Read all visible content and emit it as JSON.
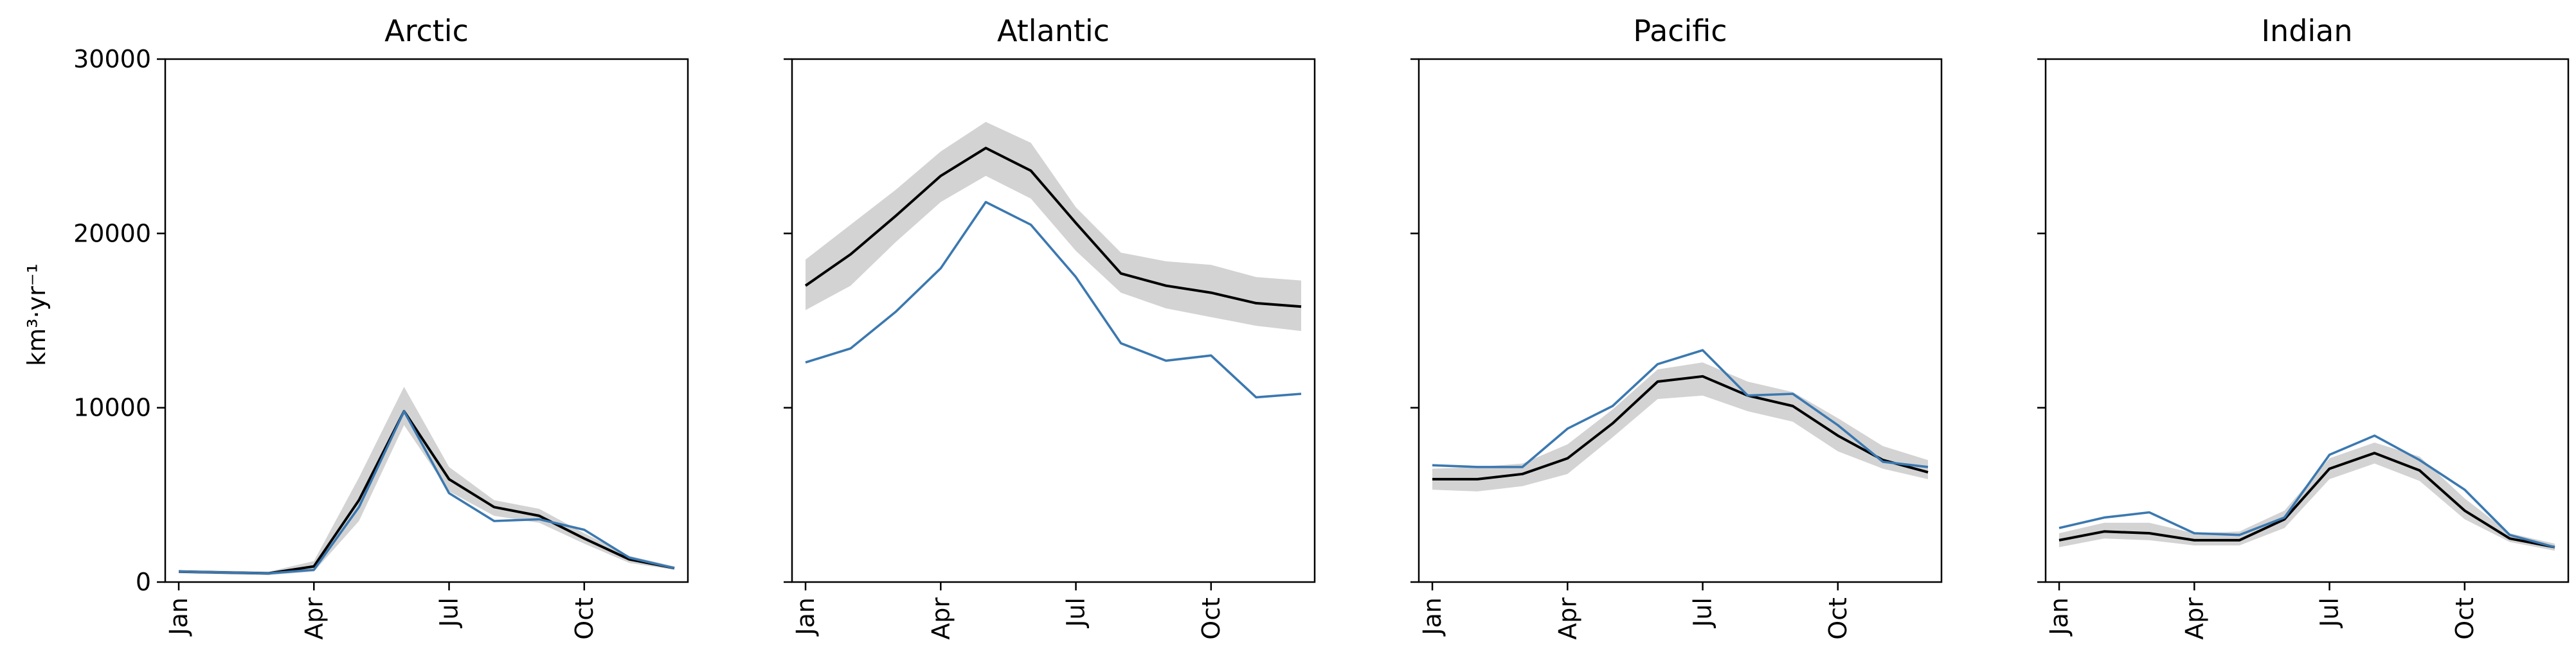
{
  "figure": {
    "ylabel": "km³·yr⁻¹",
    "colors": {
      "mean": "#000000",
      "band": "#d3d3d3",
      "obs": "#3b78b0"
    },
    "ytick_labels": [
      "0",
      "10000",
      "20000",
      "30000"
    ]
  },
  "chart_data": [
    {
      "type": "line",
      "title": "Arctic",
      "ylim": [
        0,
        30000
      ],
      "xlim": [
        0.7,
        12.3
      ],
      "x": [
        1,
        2,
        3,
        4,
        5,
        6,
        7,
        8,
        9,
        10,
        11,
        12
      ],
      "xticks": [
        1,
        4,
        7,
        10
      ],
      "xtick_labels": [
        "Jan",
        "Apr",
        "Jul",
        "Oct"
      ],
      "yticks": [
        0,
        10000,
        20000,
        30000
      ],
      "ytick_labels": [
        "0",
        "10000",
        "20000",
        "30000"
      ],
      "series": [
        {
          "role": "band",
          "lower": [
            500,
            450,
            400,
            600,
            3500,
            9000,
            5200,
            3800,
            3400,
            2200,
            1100,
            700
          ],
          "upper": [
            700,
            650,
            600,
            1200,
            6000,
            11200,
            6600,
            4700,
            4200,
            2800,
            1500,
            900
          ]
        },
        {
          "role": "mean",
          "values": [
            600,
            550,
            500,
            900,
            4700,
            9800,
            5900,
            4300,
            3800,
            2500,
            1300,
            800
          ]
        },
        {
          "role": "obs",
          "values": [
            600,
            550,
            500,
            700,
            4300,
            9800,
            5100,
            3500,
            3600,
            3000,
            1400,
            800
          ]
        }
      ]
    },
    {
      "type": "line",
      "title": "Atlantic",
      "ylim": [
        0,
        30000
      ],
      "xlim": [
        0.7,
        12.3
      ],
      "x": [
        1,
        2,
        3,
        4,
        5,
        6,
        7,
        8,
        9,
        10,
        11,
        12
      ],
      "xticks": [
        1,
        4,
        7,
        10
      ],
      "xtick_labels": [
        "Jan",
        "Apr",
        "Jul",
        "Oct"
      ],
      "yticks": [
        0,
        10000,
        20000,
        30000
      ],
      "ytick_labels": [],
      "series": [
        {
          "role": "band",
          "lower": [
            15600,
            17000,
            19500,
            21800,
            23300,
            22000,
            19000,
            16600,
            15700,
            15200,
            14700,
            14400
          ],
          "upper": [
            18500,
            20500,
            22500,
            24700,
            26400,
            25200,
            21500,
            18900,
            18400,
            18200,
            17500,
            17300
          ]
        },
        {
          "role": "mean",
          "values": [
            17000,
            18800,
            21000,
            23300,
            24900,
            23600,
            20600,
            17700,
            17000,
            16600,
            16000,
            15800
          ]
        },
        {
          "role": "obs",
          "values": [
            12600,
            13400,
            15500,
            18000,
            21800,
            20500,
            17500,
            13700,
            12700,
            13000,
            10600,
            10800
          ]
        }
      ]
    },
    {
      "type": "line",
      "title": "Pacific",
      "ylim": [
        0,
        30000
      ],
      "xlim": [
        0.7,
        12.3
      ],
      "x": [
        1,
        2,
        3,
        4,
        5,
        6,
        7,
        8,
        9,
        10,
        11,
        12
      ],
      "xticks": [
        1,
        4,
        7,
        10
      ],
      "xtick_labels": [
        "Jan",
        "Apr",
        "Jul",
        "Oct"
      ],
      "yticks": [
        0,
        10000,
        20000,
        30000
      ],
      "ytick_labels": [],
      "series": [
        {
          "role": "band",
          "lower": [
            5300,
            5200,
            5500,
            6200,
            8300,
            10500,
            10700,
            9800,
            9200,
            7500,
            6500,
            5900
          ],
          "upper": [
            6500,
            6600,
            6800,
            7900,
            9900,
            12200,
            12600,
            11500,
            10900,
            9400,
            7800,
            7000
          ]
        },
        {
          "role": "mean",
          "values": [
            5900,
            5900,
            6200,
            7100,
            9100,
            11500,
            11800,
            10700,
            10100,
            8400,
            7000,
            6300
          ]
        },
        {
          "role": "obs",
          "values": [
            6700,
            6600,
            6600,
            8800,
            10100,
            12500,
            13300,
            10700,
            10800,
            9000,
            6900,
            6600
          ]
        }
      ]
    },
    {
      "type": "line",
      "title": "Indian",
      "ylim": [
        0,
        30000
      ],
      "xlim": [
        0.7,
        12.3
      ],
      "x": [
        1,
        2,
        3,
        4,
        5,
        6,
        7,
        8,
        9,
        10,
        11,
        12
      ],
      "xticks": [
        1,
        4,
        7,
        10
      ],
      "xtick_labels": [
        "Jan",
        "Apr",
        "Jul",
        "Oct"
      ],
      "yticks": [
        0,
        10000,
        20000,
        30000
      ],
      "ytick_labels": [],
      "series": [
        {
          "role": "band",
          "lower": [
            2000,
            2500,
            2400,
            2100,
            2100,
            3100,
            5900,
            6800,
            5800,
            3600,
            2300,
            1800
          ],
          "upper": [
            2800,
            3400,
            3400,
            2800,
            2900,
            4100,
            7100,
            8000,
            7200,
            4800,
            2800,
            2200
          ]
        },
        {
          "role": "mean",
          "values": [
            2400,
            2900,
            2800,
            2400,
            2400,
            3600,
            6500,
            7400,
            6400,
            4100,
            2500,
            2000
          ]
        },
        {
          "role": "obs",
          "values": [
            3100,
            3700,
            4000,
            2800,
            2700,
            3700,
            7300,
            8400,
            7000,
            5300,
            2700,
            2000
          ]
        }
      ]
    }
  ]
}
